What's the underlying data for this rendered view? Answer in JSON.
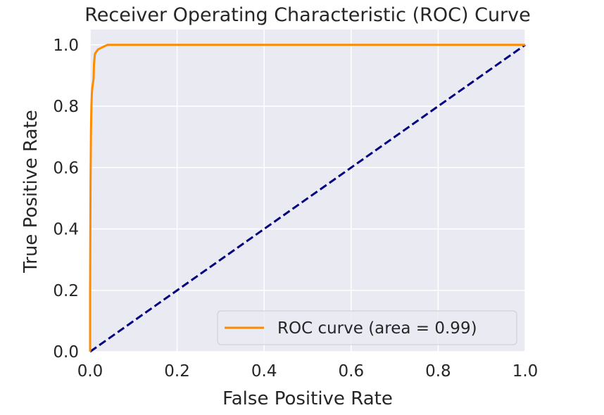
{
  "chart_data": {
    "type": "line",
    "title": "Receiver Operating Characteristic (ROC) Curve",
    "xlabel": "False Positive Rate",
    "ylabel": "True Positive Rate",
    "xlim": [
      0.0,
      1.0
    ],
    "ylim": [
      0.0,
      1.05
    ],
    "xticks": [
      "0.0",
      "0.2",
      "0.4",
      "0.6",
      "0.8",
      "1.0"
    ],
    "yticks": [
      "0.0",
      "0.2",
      "0.4",
      "0.6",
      "0.8",
      "1.0"
    ],
    "grid": true,
    "legend_position": "lower-right",
    "series": [
      {
        "name": "ROC curve (area = 0.99)",
        "color": "#ff8c00",
        "style": "solid",
        "x": [
          0.0,
          0.0,
          0.001,
          0.002,
          0.003,
          0.004,
          0.005,
          0.006,
          0.007,
          0.008,
          0.009,
          0.011,
          0.013,
          0.018,
          0.025,
          0.032,
          0.04,
          0.05,
          0.1,
          0.5,
          1.0
        ],
        "y": [
          0.0,
          0.2,
          0.55,
          0.72,
          0.8,
          0.84,
          0.86,
          0.87,
          0.88,
          0.89,
          0.94,
          0.97,
          0.975,
          0.985,
          0.99,
          0.995,
          1.0,
          1.0,
          1.0,
          1.0,
          1.0
        ]
      },
      {
        "name": "",
        "color": "#000080",
        "style": "dashed",
        "x": [
          0.0,
          1.0
        ],
        "y": [
          0.0,
          1.0
        ]
      }
    ]
  },
  "colors": {
    "plot_background": "#eaeaf2",
    "grid": "#ffffff",
    "text": "#262626"
  }
}
